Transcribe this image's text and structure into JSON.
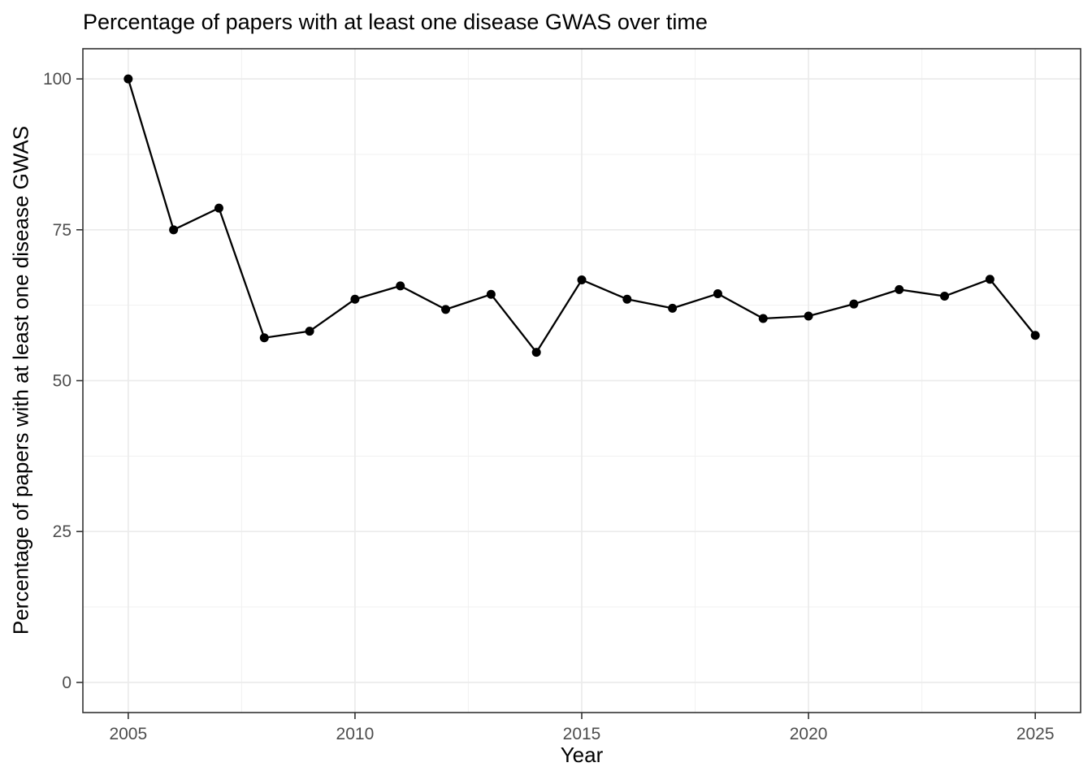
{
  "chart_data": {
    "type": "line",
    "title": "Percentage of papers with at least one disease GWAS over time",
    "xlabel": "Year",
    "ylabel": "Percentage of papers with at least one disease GWAS",
    "x": [
      2005,
      2006,
      2007,
      2008,
      2009,
      2010,
      2011,
      2012,
      2013,
      2014,
      2015,
      2016,
      2017,
      2018,
      2019,
      2020,
      2021,
      2022,
      2023,
      2024,
      2025
    ],
    "values": [
      100,
      75,
      78.6,
      57.1,
      58.2,
      63.5,
      65.7,
      61.8,
      64.3,
      54.7,
      66.7,
      63.5,
      62.0,
      64.4,
      60.3,
      60.7,
      62.7,
      65.1,
      64.0,
      66.8,
      57.5
    ],
    "xlim": [
      2004,
      2026
    ],
    "ylim": [
      -5,
      105
    ],
    "x_major_ticks": [
      2005,
      2010,
      2015,
      2020,
      2025
    ],
    "x_minor_ticks": [
      2007.5,
      2012.5,
      2017.5,
      2022.5
    ],
    "y_major_ticks": [
      0,
      25,
      50,
      75,
      100
    ],
    "y_minor_ticks": [
      12.5,
      37.5,
      62.5,
      87.5
    ],
    "x_tick_labels": [
      "2005",
      "2010",
      "2015",
      "2020",
      "2025"
    ],
    "y_tick_labels": [
      "0",
      "25",
      "50",
      "75",
      "100"
    ],
    "grid": true,
    "legend": "none",
    "colors": {
      "line": "#000000",
      "point": "#000000",
      "grid_major": "#ebebeb",
      "grid_minor": "#f1f1f1",
      "panel_border": "#333333",
      "tick_mark": "#333333",
      "tick_label": "#4d4d4d",
      "title_text": "#000000",
      "background": "#ffffff"
    }
  }
}
